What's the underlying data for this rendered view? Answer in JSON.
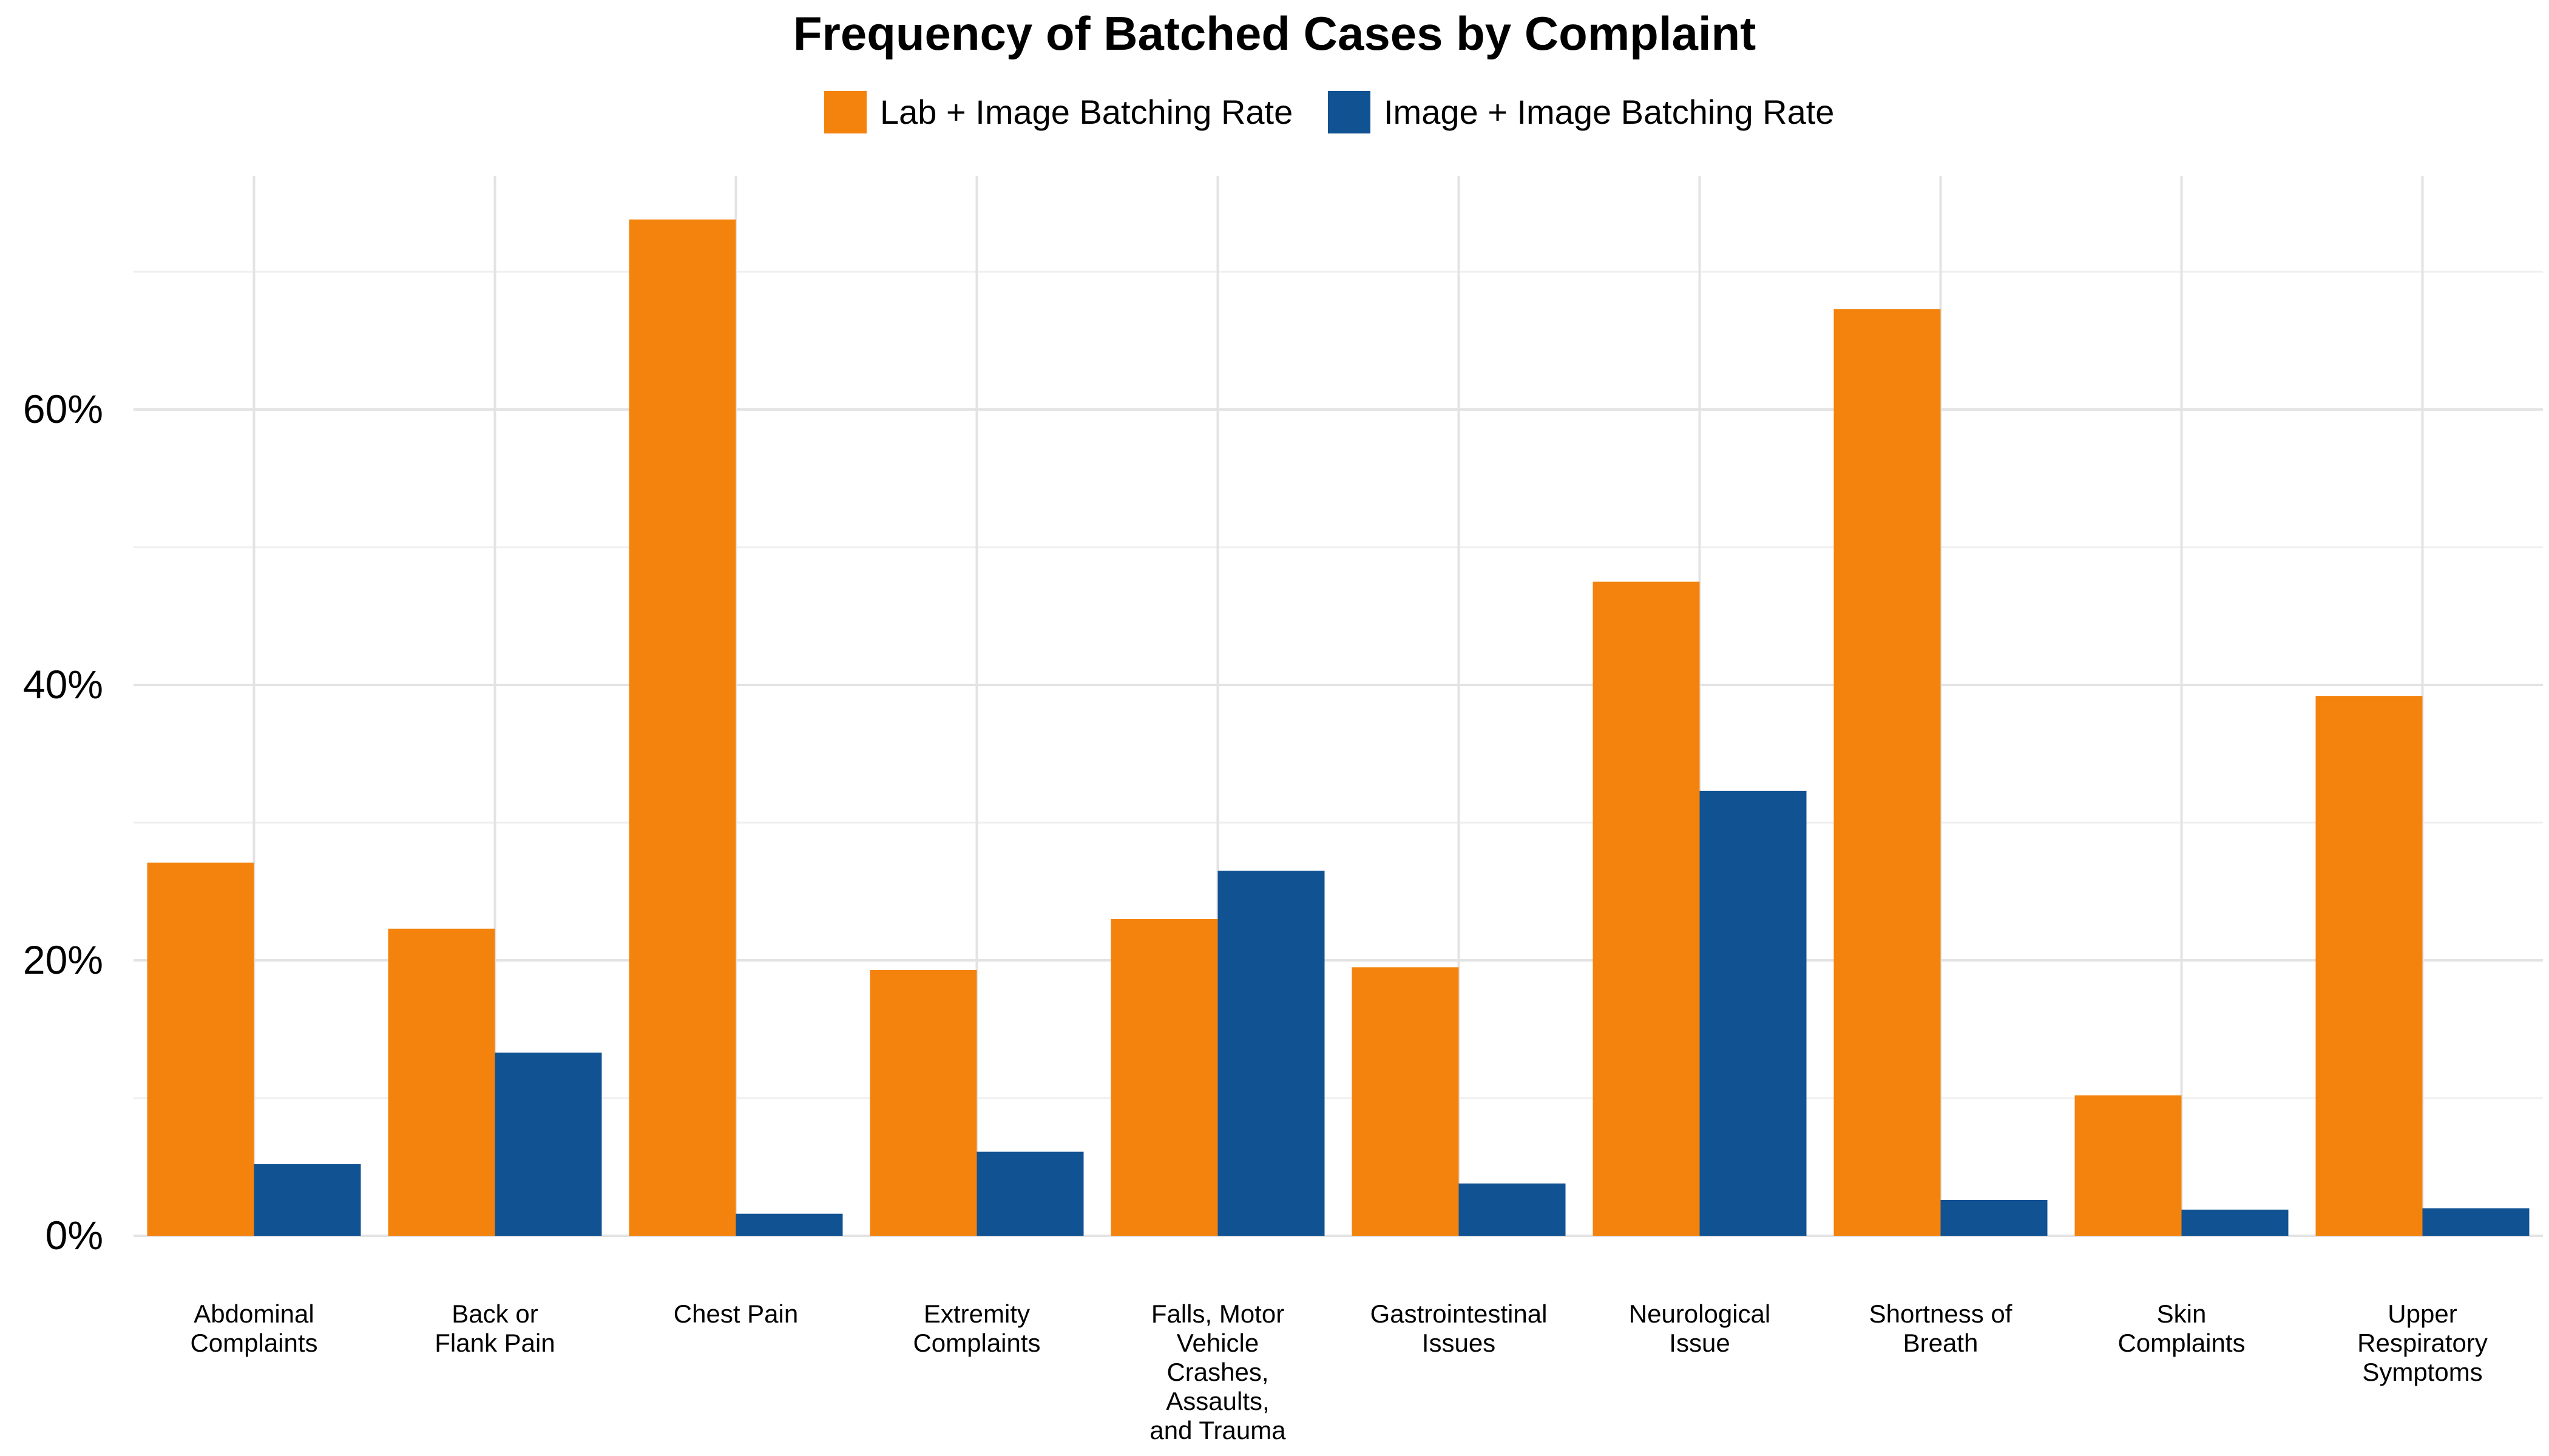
{
  "chart_data": {
    "type": "bar",
    "title": "Frequency of Batched Cases by Complaint",
    "xlabel": "",
    "ylabel": "",
    "ylim": [
      0,
      78
    ],
    "y_ticks": [
      0,
      20,
      40,
      60
    ],
    "y_tick_labels": [
      "0%",
      "20%",
      "40%",
      "60%"
    ],
    "grid": true,
    "legend_position": "top",
    "categories": [
      "Abdominal Complaints",
      "Back or Flank Pain",
      "Chest Pain",
      "Extremity Complaints",
      "Falls, Motor Vehicle Crashes, Assaults, and Trauma",
      "Gastrointestinal Issues",
      "Neurological Issue",
      "Shortness of Breath",
      "Skin Complaints",
      "Upper Respiratory Symptoms"
    ],
    "category_label_lines": [
      [
        "Abdominal",
        "Complaints"
      ],
      [
        "Back or",
        "Flank Pain"
      ],
      [
        "Chest Pain"
      ],
      [
        "Extremity",
        "Complaints"
      ],
      [
        "Falls, Motor",
        "Vehicle",
        "Crashes,",
        "Assaults,",
        "and Trauma"
      ],
      [
        "Gastrointestinal",
        "Issues"
      ],
      [
        "Neurological",
        "Issue"
      ],
      [
        "Shortness of",
        "Breath"
      ],
      [
        "Skin",
        "Complaints"
      ],
      [
        "Upper",
        "Respiratory",
        "Symptoms"
      ]
    ],
    "series": [
      {
        "name": "Lab + Image Batching Rate",
        "color": "#f3830d",
        "values": [
          27.1,
          22.3,
          73.8,
          19.3,
          23.0,
          19.5,
          47.5,
          67.3,
          10.2,
          39.2
        ]
      },
      {
        "name": "Image + Image Batching Rate",
        "color": "#115293",
        "values": [
          5.2,
          13.3,
          1.6,
          6.1,
          26.5,
          3.8,
          32.3,
          2.6,
          1.9,
          2.0
        ]
      }
    ]
  }
}
